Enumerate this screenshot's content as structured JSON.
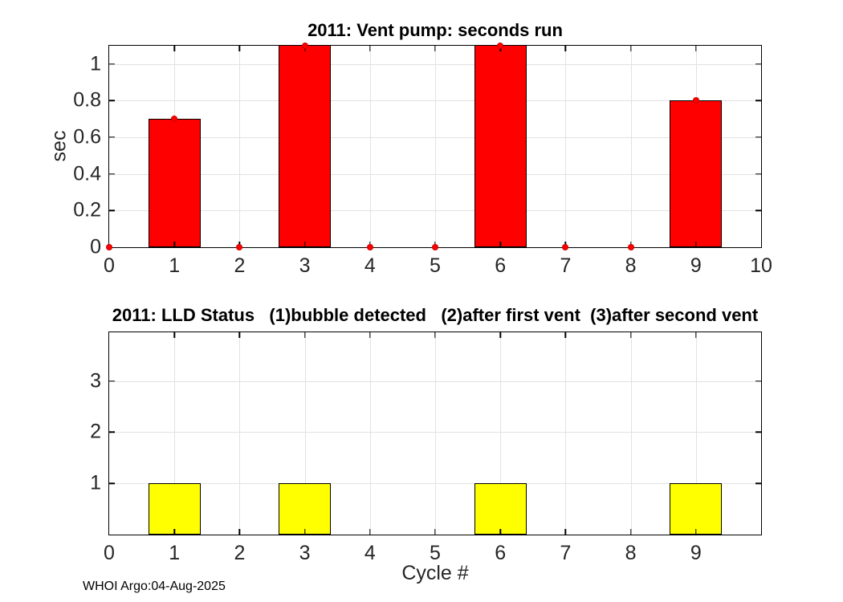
{
  "figure": {
    "background": "#ffffff",
    "footer": "WHOI Argo:04-Aug-2025"
  },
  "colors": {
    "grid": "#e2e2e2",
    "axis_box": "#000000",
    "tick_text": "#262626",
    "title_text": "#000000"
  },
  "chart_data": [
    {
      "type": "bar",
      "title": "2011: Vent pump: seconds run",
      "ylabel": "sec",
      "xlabel": "",
      "x": [
        0,
        1,
        2,
        3,
        4,
        5,
        6,
        7,
        8,
        9
      ],
      "values": [
        0,
        0.7,
        0,
        1.1,
        0,
        0,
        1.1,
        0,
        0,
        0.8
      ],
      "clipped_above_ymax": [
        3,
        6
      ],
      "bar_width": 0.8,
      "bar_color": "#ff0000",
      "bar_edge_color": "#000000",
      "show_point_markers": true,
      "marker_color": "#ff0000",
      "marker_edge_color": "#cc0000",
      "xlim": [
        0,
        10
      ],
      "ylim": [
        0,
        1.1
      ],
      "xticks": [
        0,
        1,
        2,
        3,
        4,
        5,
        6,
        7,
        8,
        9,
        10
      ],
      "xtick_labels": [
        "0",
        "1",
        "2",
        "3",
        "4",
        "5",
        "6",
        "7",
        "8",
        "9",
        "10"
      ],
      "yticks": [
        0,
        0.2,
        0.4,
        0.6,
        0.8,
        1
      ],
      "ytick_labels": [
        "0",
        "0.2",
        "0.4",
        "0.6",
        "0.8",
        "1"
      ],
      "grid": true,
      "legend": null
    },
    {
      "type": "bar",
      "title": "2011: LLD Status   (1)bubble detected   (2)after first vent  (3)after second vent",
      "ylabel": "",
      "xlabel": "Cycle #",
      "x": [
        0,
        1,
        2,
        3,
        4,
        5,
        6,
        7,
        8,
        9
      ],
      "values": [
        0,
        1,
        0,
        1,
        0,
        0,
        1,
        0,
        0,
        1
      ],
      "clipped_above_ymax": [],
      "bar_width": 0.8,
      "bar_color": "#ffff00",
      "bar_edge_color": "#000000",
      "show_point_markers": false,
      "marker_color": "#ff0000",
      "marker_edge_color": "#cc0000",
      "xlim": [
        0,
        10
      ],
      "ylim": [
        0,
        3.95
      ],
      "xticks": [
        0,
        1,
        2,
        3,
        4,
        5,
        6,
        7,
        8,
        9
      ],
      "xtick_labels": [
        "0",
        "1",
        "2",
        "3",
        "4",
        "5",
        "6",
        "7",
        "8",
        "9"
      ],
      "yticks": [
        1,
        2,
        3
      ],
      "ytick_labels": [
        "1",
        "2",
        "3"
      ],
      "grid": true,
      "legend": null
    }
  ]
}
